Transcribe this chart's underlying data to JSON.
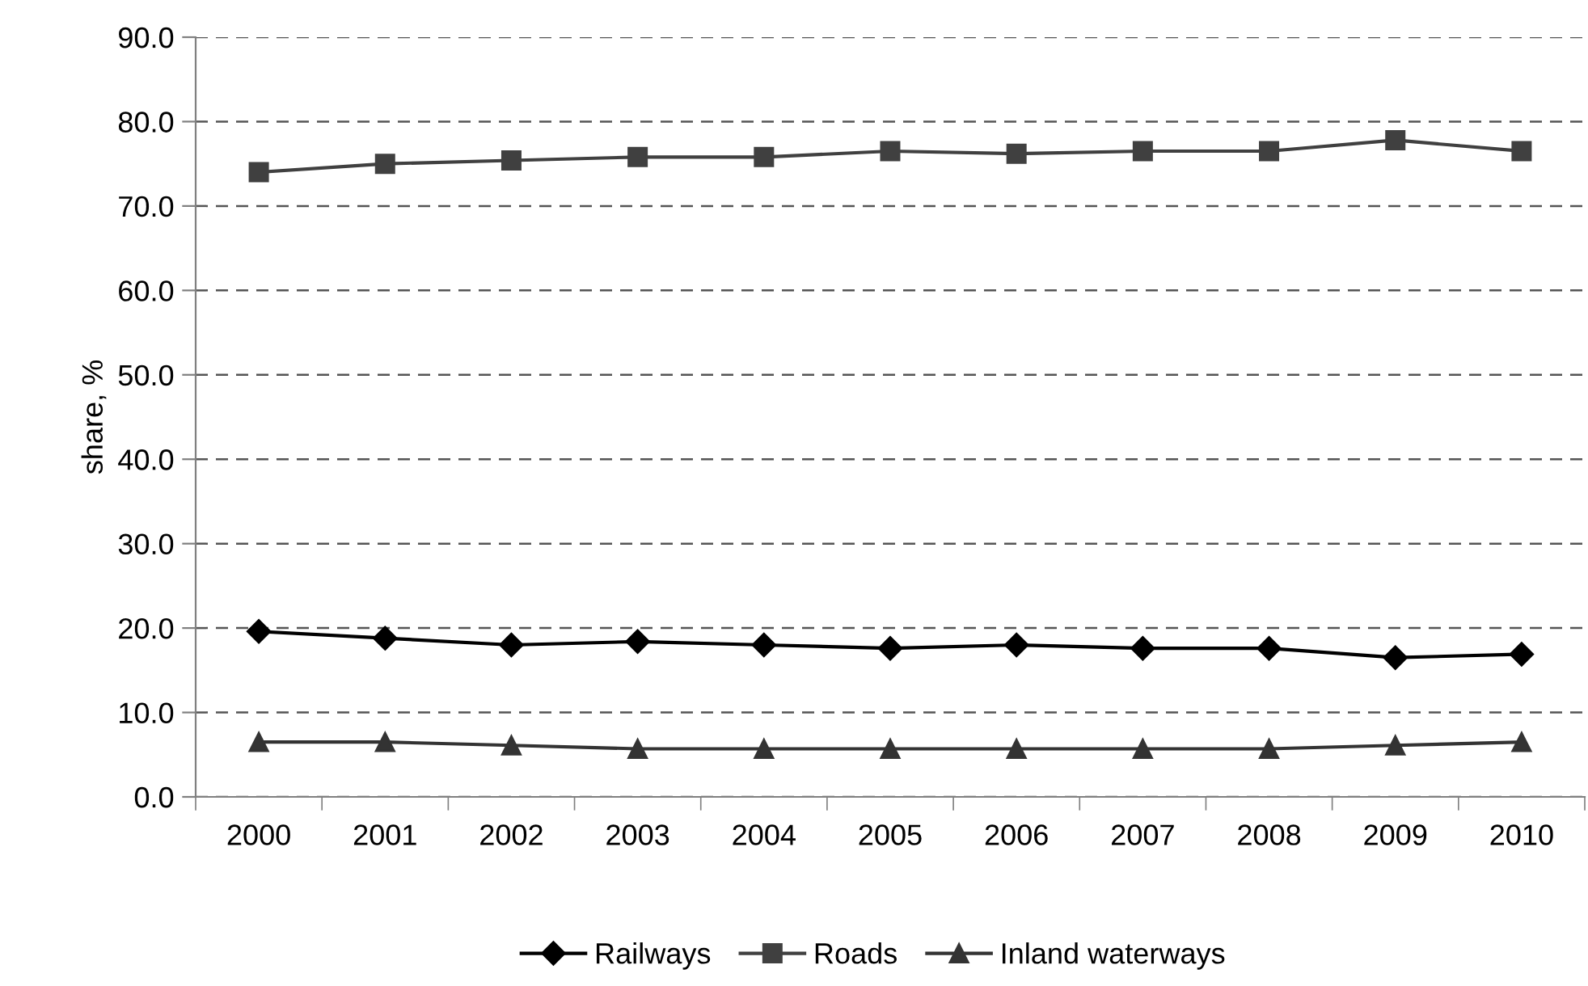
{
  "chart_data": {
    "type": "line",
    "ylabel": "share, %",
    "categories": [
      "2000",
      "2001",
      "2002",
      "2003",
      "2004",
      "2005",
      "2006",
      "2007",
      "2008",
      "2009",
      "2010"
    ],
    "series": [
      {
        "name": "Railways",
        "color": "#000000",
        "marker": "diamond",
        "values": [
          19.6,
          18.8,
          18.0,
          18.4,
          18.0,
          17.6,
          18.0,
          17.6,
          17.6,
          16.5,
          16.9
        ]
      },
      {
        "name": "Roads",
        "color": "#404040",
        "marker": "square",
        "values": [
          74.0,
          75.0,
          75.4,
          75.8,
          75.8,
          76.5,
          76.2,
          76.5,
          76.5,
          77.8,
          76.5
        ]
      },
      {
        "name": "Inland waterways",
        "color": "#333333",
        "marker": "triangle",
        "values": [
          6.5,
          6.5,
          6.1,
          5.7,
          5.7,
          5.7,
          5.7,
          5.7,
          5.7,
          6.1,
          6.5
        ]
      }
    ],
    "ylim": [
      0,
      90
    ],
    "yticks": [
      {
        "value": 0,
        "label": "0.0"
      },
      {
        "value": 10,
        "label": "10.0"
      },
      {
        "value": 20,
        "label": "20.0"
      },
      {
        "value": 30,
        "label": "30.0"
      },
      {
        "value": 40,
        "label": "40.0"
      },
      {
        "value": 50,
        "label": "50.0"
      },
      {
        "value": 60,
        "label": "60.0"
      },
      {
        "value": 70,
        "label": "70.0"
      },
      {
        "value": 80,
        "label": "80.0"
      },
      {
        "value": 90,
        "label": "90.0"
      }
    ],
    "grid": "y",
    "legend": "bottom",
    "line_style": "solid"
  }
}
